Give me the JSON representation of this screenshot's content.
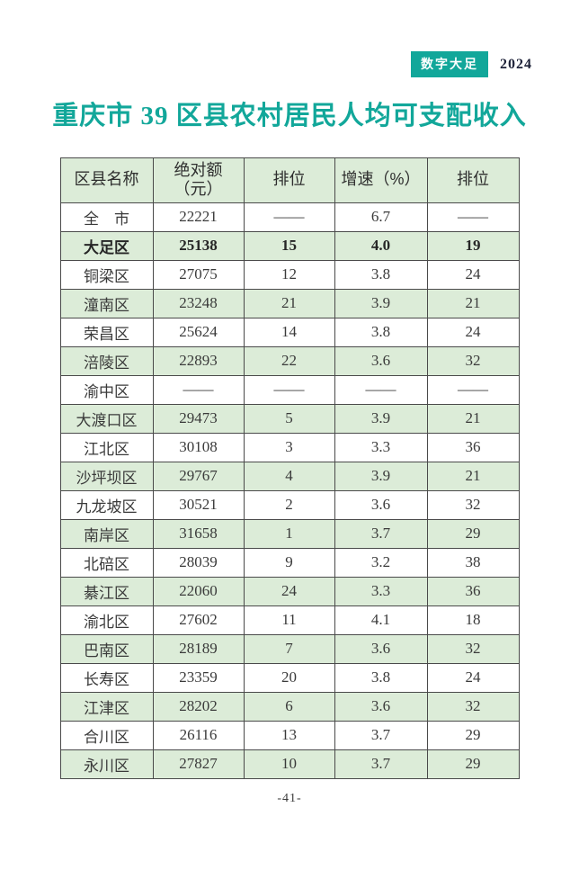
{
  "page": {
    "badge": "数字大足",
    "year": "2024",
    "title": "重庆市 39 区县农村居民人均可支配收入",
    "page_number": "-41-"
  },
  "table": {
    "header": {
      "district": "区县名称",
      "amount_line1": "绝对额",
      "amount_line2": "（元）",
      "rank1": "排位",
      "growth": "增速（%）",
      "rank2": "排位"
    },
    "rows": [
      {
        "name": "全　市",
        "amount": "22221",
        "rank1": "——",
        "growth": "6.7",
        "rank2": "——",
        "highlight": false
      },
      {
        "name": "大足区",
        "amount": "25138",
        "rank1": "15",
        "growth": "4.0",
        "rank2": "19",
        "highlight": true
      },
      {
        "name": "铜梁区",
        "amount": "27075",
        "rank1": "12",
        "growth": "3.8",
        "rank2": "24",
        "highlight": false
      },
      {
        "name": "潼南区",
        "amount": "23248",
        "rank1": "21",
        "growth": "3.9",
        "rank2": "21",
        "highlight": false
      },
      {
        "name": "荣昌区",
        "amount": "25624",
        "rank1": "14",
        "growth": "3.8",
        "rank2": "24",
        "highlight": false
      },
      {
        "name": "涪陵区",
        "amount": "22893",
        "rank1": "22",
        "growth": "3.6",
        "rank2": "32",
        "highlight": false
      },
      {
        "name": "渝中区",
        "amount": "——",
        "rank1": "——",
        "growth": "——",
        "rank2": "——",
        "highlight": false
      },
      {
        "name": "大渡口区",
        "amount": "29473",
        "rank1": "5",
        "growth": "3.9",
        "rank2": "21",
        "highlight": false
      },
      {
        "name": "江北区",
        "amount": "30108",
        "rank1": "3",
        "growth": "3.3",
        "rank2": "36",
        "highlight": false
      },
      {
        "name": "沙坪坝区",
        "amount": "29767",
        "rank1": "4",
        "growth": "3.9",
        "rank2": "21",
        "highlight": false
      },
      {
        "name": "九龙坡区",
        "amount": "30521",
        "rank1": "2",
        "growth": "3.6",
        "rank2": "32",
        "highlight": false
      },
      {
        "name": "南岸区",
        "amount": "31658",
        "rank1": "1",
        "growth": "3.7",
        "rank2": "29",
        "highlight": false
      },
      {
        "name": "北碚区",
        "amount": "28039",
        "rank1": "9",
        "growth": "3.2",
        "rank2": "38",
        "highlight": false
      },
      {
        "name": "綦江区",
        "amount": "22060",
        "rank1": "24",
        "growth": "3.3",
        "rank2": "36",
        "highlight": false
      },
      {
        "name": "渝北区",
        "amount": "27602",
        "rank1": "11",
        "growth": "4.1",
        "rank2": "18",
        "highlight": false
      },
      {
        "name": "巴南区",
        "amount": "28189",
        "rank1": "7",
        "growth": "3.6",
        "rank2": "32",
        "highlight": false
      },
      {
        "name": "长寿区",
        "amount": "23359",
        "rank1": "20",
        "growth": "3.8",
        "rank2": "24",
        "highlight": false
      },
      {
        "name": "江津区",
        "amount": "28202",
        "rank1": "6",
        "growth": "3.6",
        "rank2": "32",
        "highlight": false
      },
      {
        "name": "合川区",
        "amount": "26116",
        "rank1": "13",
        "growth": "3.7",
        "rank2": "29",
        "highlight": false
      },
      {
        "name": "永川区",
        "amount": "27827",
        "rank1": "10",
        "growth": "3.7",
        "rank2": "29",
        "highlight": false
      }
    ],
    "colors": {
      "accent_teal": "#12a79a",
      "row_green": "#dcecd8",
      "border": "#4a4a4a"
    }
  }
}
